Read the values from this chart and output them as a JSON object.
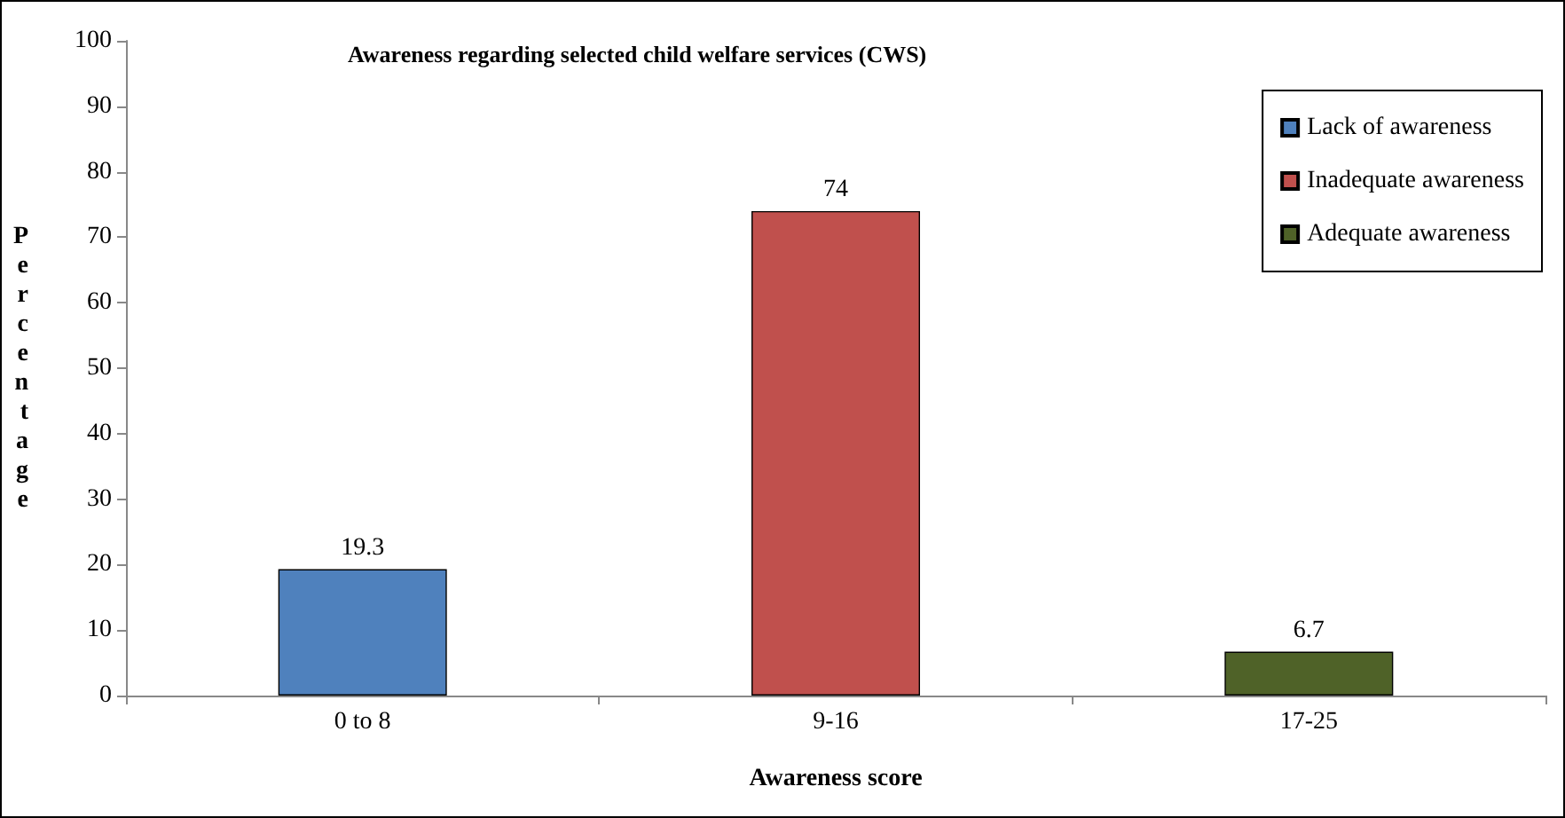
{
  "chart_data": {
    "type": "bar",
    "title": "Awareness regarding selected child welfare services (CWS)",
    "xlabel": "Awareness score",
    "ylabel": "Percentage",
    "categories": [
      "0 to 8",
      "9-16",
      "17-25"
    ],
    "series": [
      {
        "name": "Lack of awareness",
        "color": "#4f81bd",
        "values": [
          19.3,
          null,
          null
        ]
      },
      {
        "name": "Inadequate awareness",
        "color": "#c0504d",
        "values": [
          null,
          74,
          null
        ]
      },
      {
        "name": "Adequate awareness",
        "color": "#4f6228",
        "values": [
          null,
          null,
          6.7
        ]
      }
    ],
    "ylim": [
      0,
      100
    ],
    "yticks": [
      0,
      10,
      20,
      30,
      40,
      50,
      60,
      70,
      80,
      90,
      100
    ],
    "grid": false,
    "legend": "top right",
    "data_labels": true
  }
}
